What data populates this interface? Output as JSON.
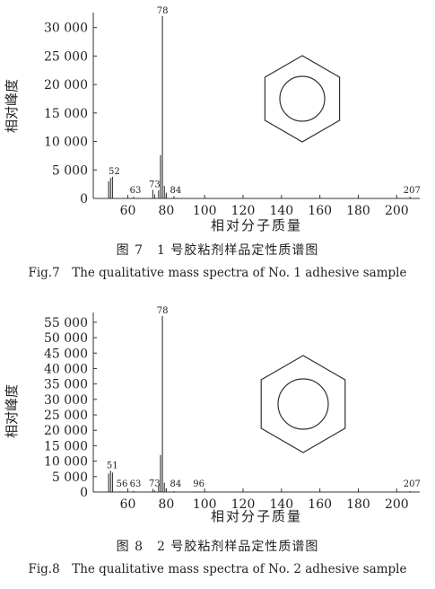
{
  "chart_data": [
    {
      "id": "fig7",
      "type": "bar",
      "xlabel": "相对分子质量",
      "ylabel": "相对峰度",
      "xlim": [
        42,
        212
      ],
      "ylim": [
        0,
        32000
      ],
      "x_ticks": [
        60,
        80,
        100,
        120,
        140,
        160,
        180,
        200
      ],
      "y_ticks": [
        0,
        5000,
        10000,
        15000,
        20000,
        25000,
        30000
      ],
      "y_tick_labels": [
        "0",
        "5 000",
        "10 000",
        "15 000",
        "20 000",
        "25 000",
        "30 000"
      ],
      "peaks": {
        "x": [
          50,
          51,
          52,
          63,
          73,
          74,
          76,
          77,
          78,
          79,
          80,
          84,
          207
        ],
        "y": [
          3000,
          3600,
          3800,
          300,
          1500,
          700,
          1400,
          7600,
          32000,
          2200,
          1000,
          400,
          300
        ]
      },
      "peak_labels": [
        {
          "x": 52,
          "text": "52"
        },
        {
          "x": 63,
          "text": "63"
        },
        {
          "x": 73,
          "text": "73"
        },
        {
          "x": 78,
          "text": "78"
        },
        {
          "x": 84,
          "text": "84"
        },
        {
          "x": 207,
          "text": "207"
        }
      ],
      "caption_cn": "图 7　1 号胶粘剂样品定性质谱图",
      "caption_en": "Fig.7　The qualitative mass spectra of No. 1 adhesive sample"
    },
    {
      "id": "fig8",
      "type": "bar",
      "xlabel": "相对分子质量",
      "ylabel": "相对峰度",
      "xlim": [
        42,
        212
      ],
      "ylim": [
        0,
        57000
      ],
      "x_ticks": [
        60,
        80,
        100,
        120,
        140,
        160,
        180,
        200
      ],
      "y_ticks": [
        0,
        5000,
        10000,
        15000,
        20000,
        25000,
        30000,
        35000,
        40000,
        45000,
        50000,
        55000
      ],
      "y_tick_labels": [
        "0",
        "5 000",
        "10 000",
        "15 000",
        "20 000",
        "25 000",
        "30 000",
        "35 000",
        "40 000",
        "45 000",
        "50 000",
        "55 000"
      ],
      "peaks": {
        "x": [
          50,
          51,
          52,
          56,
          63,
          73,
          74,
          76,
          77,
          78,
          79,
          80,
          84,
          96,
          207
        ],
        "y": [
          6000,
          6900,
          6300,
          200,
          400,
          1000,
          500,
          2200,
          12000,
          57000,
          3000,
          1200,
          300,
          200,
          300
        ]
      },
      "peak_labels": [
        {
          "x": 51,
          "text": "51"
        },
        {
          "x": 56,
          "text": "56"
        },
        {
          "x": 63,
          "text": "63"
        },
        {
          "x": 73,
          "text": "73"
        },
        {
          "x": 78,
          "text": "78"
        },
        {
          "x": 84,
          "text": "84"
        },
        {
          "x": 96,
          "text": "96"
        },
        {
          "x": 207,
          "text": "207"
        }
      ],
      "caption_cn": "图 8　2 号胶粘剂样品定性质谱图",
      "caption_en": "Fig.8　The qualitative mass spectra of No. 2 adhesive sample"
    }
  ]
}
